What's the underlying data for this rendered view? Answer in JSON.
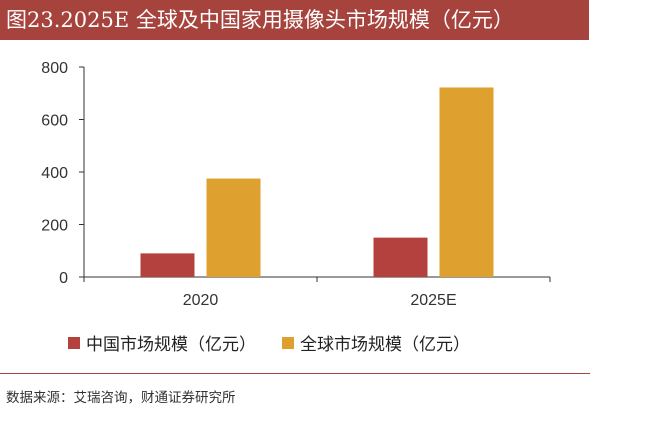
{
  "title": "图23.2025E 全球及中国家用摄像头市场规模（亿元）",
  "source": "数据来源：艾瑞咨询，财通证券研究所",
  "colors": {
    "title_bg": "#a7433d",
    "china": "#b5413f",
    "global": "#dea02e"
  },
  "chart_data": {
    "type": "bar",
    "title": "2025E 全球及中国家用摄像头市场规模（亿元）",
    "categories": [
      "2020",
      "2025E"
    ],
    "series": [
      {
        "name": "中国市场规模（亿元）",
        "values": [
          90,
          150
        ],
        "color": "#b5413f"
      },
      {
        "name": "全球市场规模（亿元）",
        "values": [
          375,
          722
        ],
        "color": "#dea02e"
      }
    ],
    "ylim": [
      0,
      800
    ],
    "yticks": [
      0,
      200,
      400,
      600,
      800
    ],
    "xlabel": "",
    "ylabel": "",
    "grid": false,
    "legend_position": "bottom"
  }
}
